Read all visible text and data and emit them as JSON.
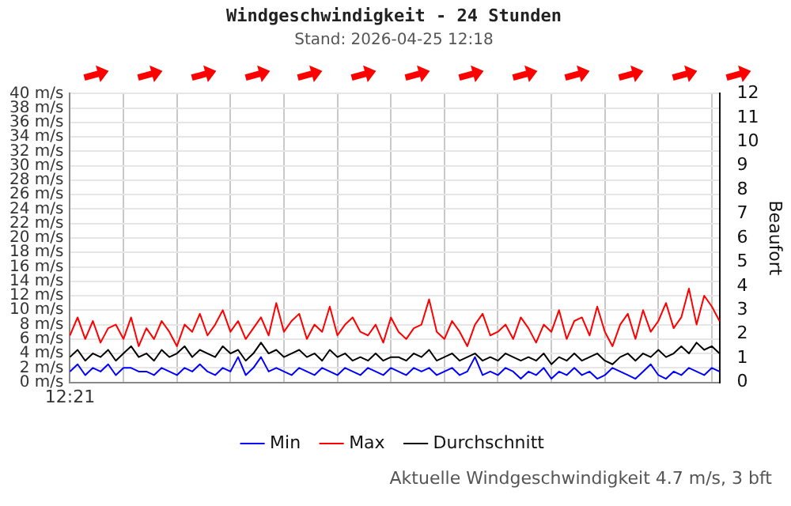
{
  "chart_data": {
    "type": "line",
    "title": "Windgeschwindigkeit - 24 Stunden",
    "subtitle": "Stand: 2026-04-25 12:18",
    "y2label": "Beaufort",
    "annotations": [
      "Aktuelle Windgeschwindigkeit 4.7 m/s, 3 bft"
    ],
    "categories": [
      "12:21",
      null,
      null,
      null,
      null,
      null,
      null,
      null,
      null,
      null,
      null,
      null,
      null,
      null,
      null,
      null,
      null,
      null,
      null,
      null,
      null,
      null,
      null,
      null,
      null,
      null,
      null,
      null,
      null,
      null,
      null,
      null,
      null,
      null,
      null,
      null,
      null,
      null,
      null,
      null,
      null,
      null,
      null,
      null,
      null,
      null,
      null,
      null,
      null,
      null,
      null,
      null,
      null,
      null,
      null,
      null,
      null,
      null,
      null,
      null,
      null,
      null,
      null,
      null,
      null,
      null,
      null,
      null,
      null,
      null,
      null,
      null,
      null,
      null,
      null,
      null,
      null,
      null,
      null,
      null,
      null,
      null,
      null,
      null,
      null,
      null
    ],
    "ylim": [
      0,
      40
    ],
    "yticks": [
      {
        "value": 0,
        "label": "0 m/s"
      },
      {
        "value": 2,
        "label": "2 m/s"
      },
      {
        "value": 4,
        "label": "4 m/s"
      },
      {
        "value": 6,
        "label": "6 m/s"
      },
      {
        "value": 8,
        "label": "8 m/s"
      },
      {
        "value": 10,
        "label": "10 m/s"
      },
      {
        "value": 12,
        "label": "12 m/s"
      },
      {
        "value": 14,
        "label": "14 m/s"
      },
      {
        "value": 16,
        "label": "16 m/s"
      },
      {
        "value": 18,
        "label": "18 m/s"
      },
      {
        "value": 20,
        "label": "20 m/s"
      },
      {
        "value": 22,
        "label": "22 m/s"
      },
      {
        "value": 24,
        "label": "24 m/s"
      },
      {
        "value": 26,
        "label": "26 m/s"
      },
      {
        "value": 28,
        "label": "28 m/s"
      },
      {
        "value": 30,
        "label": "30 m/s"
      },
      {
        "value": 32,
        "label": "32 m/s"
      },
      {
        "value": 34,
        "label": "34 m/s"
      },
      {
        "value": 36,
        "label": "36 m/s"
      },
      {
        "value": 38,
        "label": "38 m/s"
      },
      {
        "value": 40,
        "label": "40 m/s"
      }
    ],
    "y2lim": [
      0,
      12
    ],
    "y2ticks": [
      0,
      1,
      2,
      3,
      4,
      5,
      6,
      7,
      8,
      9,
      10,
      11,
      12
    ],
    "grid": true,
    "legend": "bottom",
    "marker": "none",
    "line_style": "solid",
    "series": [
      {
        "name": "Min",
        "color": "#0000ff",
        "values": [
          1.5,
          2.5,
          1,
          2,
          1.5,
          2.5,
          1,
          2,
          2,
          1.5,
          1.5,
          1,
          2,
          1.5,
          1,
          2,
          1.5,
          2.5,
          1.5,
          1,
          2,
          1.5,
          3.5,
          1,
          2,
          3.5,
          1.5,
          2,
          1.5,
          1,
          2,
          1.5,
          1,
          2,
          1.5,
          1,
          2,
          1.5,
          1,
          2,
          1.5,
          1,
          2,
          1.5,
          1,
          2,
          1.5,
          2,
          1,
          1.5,
          2,
          1,
          1.5,
          3.5,
          1,
          1.5,
          1,
          2,
          1.5,
          0.5,
          1.5,
          1,
          2,
          0.5,
          1.5,
          1,
          2,
          1,
          1.5,
          0.5,
          1,
          2,
          1.5,
          1,
          0.5,
          1.5,
          2.5,
          1,
          0.5,
          1.5,
          1,
          2,
          1.5,
          1,
          2,
          1.5
        ]
      },
      {
        "name": "Max",
        "color": "#ff0000",
        "values": [
          6.5,
          9,
          6,
          8.5,
          5.5,
          7.5,
          8,
          6,
          9,
          5,
          7.5,
          6,
          8.5,
          7,
          5,
          8,
          7,
          9.5,
          6.5,
          8,
          10,
          7,
          8.5,
          6,
          7.5,
          9,
          6.5,
          11,
          7,
          8.5,
          9.5,
          6,
          8,
          7,
          10.5,
          6.5,
          8,
          9,
          7,
          6.5,
          8,
          5.5,
          9,
          7,
          6,
          7.5,
          8,
          11.5,
          7,
          6,
          8.5,
          7,
          5,
          8,
          9.5,
          6.5,
          7,
          8,
          6,
          9,
          7.5,
          5.5,
          8,
          7,
          10,
          6,
          8.5,
          9,
          6.5,
          10.5,
          7,
          5,
          8,
          9.5,
          6,
          10,
          7,
          8.5,
          11,
          7.5,
          9,
          13,
          8,
          12,
          10.5,
          8.5
        ]
      },
      {
        "name": "Durchschnitt",
        "color": "#000000",
        "values": [
          3.5,
          4.5,
          3,
          4,
          3.5,
          4.5,
          3,
          4,
          5,
          3.5,
          4,
          3,
          4.5,
          3.5,
          4,
          5,
          3.5,
          4.5,
          4,
          3.5,
          5,
          4,
          4.5,
          3,
          4,
          5.5,
          4,
          4.5,
          3.5,
          4,
          4.5,
          3.5,
          4,
          3,
          4.5,
          3.5,
          4,
          3,
          3.5,
          3,
          4,
          3,
          3.5,
          3.5,
          3,
          4,
          3.5,
          4.5,
          3,
          3.5,
          4,
          3,
          3.5,
          4,
          3,
          3.5,
          3,
          4,
          3.5,
          3,
          3.5,
          3,
          4,
          2.5,
          3.5,
          3,
          4,
          3,
          3.5,
          4,
          3,
          2.5,
          3.5,
          4,
          3,
          4,
          3.5,
          4.5,
          3.5,
          4,
          5,
          4,
          5.5,
          4.5,
          5,
          4
        ]
      }
    ]
  }
}
